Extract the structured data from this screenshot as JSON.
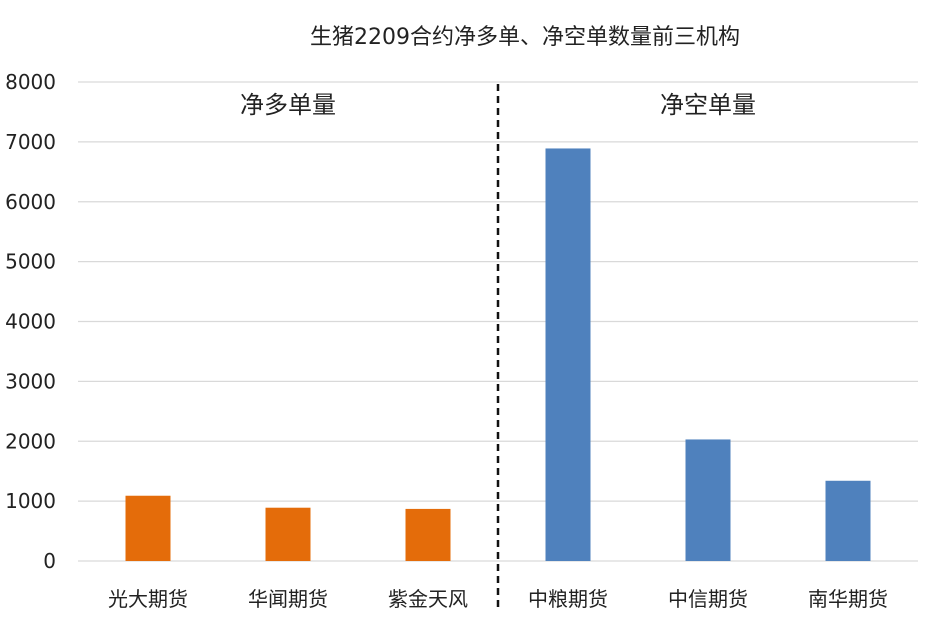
{
  "chart_data": {
    "type": "bar",
    "title": "生猪2209合约净多单、净空单数量前三机构",
    "xlabel": "",
    "ylabel": "",
    "ylim": [
      0,
      8000
    ],
    "yticks": [
      0,
      1000,
      2000,
      3000,
      4000,
      5000,
      6000,
      7000,
      8000
    ],
    "grid": true,
    "categories": [
      "光大期货",
      "华闻期货",
      "紫金天风",
      "中粮期货",
      "中信期货",
      "南华期货"
    ],
    "values": [
      1090,
      890,
      870,
      6890,
      2030,
      1340
    ],
    "groups": [
      {
        "label": "净多单量",
        "category_indices": [
          0,
          1,
          2
        ],
        "color": "#E46C0A"
      },
      {
        "label": "净空单量",
        "category_indices": [
          3,
          4,
          5
        ],
        "color": "#4F81BD"
      }
    ]
  }
}
